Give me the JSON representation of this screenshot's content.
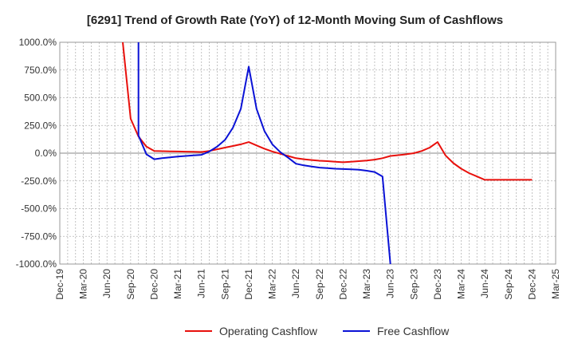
{
  "chart_data": {
    "type": "line",
    "title": "[6291]  Trend of Growth Rate (YoY) of 12-Month Moving Sum of Cashflows",
    "xlabel": "",
    "ylabel": "",
    "ylim": [
      -1000,
      1000
    ],
    "yticks": [
      1000,
      750,
      500,
      250,
      0,
      -250,
      -500,
      -750,
      -1000
    ],
    "ytick_labels": [
      "1000.0%",
      "750.0%",
      "500.0%",
      "250.0%",
      "0.0%",
      "-250.0%",
      "-500.0%",
      "-750.0%",
      "-1000.0%"
    ],
    "x_categories": [
      "Dec-19",
      "Mar-20",
      "Jun-20",
      "Sep-20",
      "Dec-20",
      "Mar-21",
      "Jun-21",
      "Sep-21",
      "Dec-21",
      "Mar-22",
      "Jun-22",
      "Sep-22",
      "Dec-22",
      "Mar-23",
      "Jun-23",
      "Sep-23",
      "Dec-23",
      "Mar-24",
      "Jun-24",
      "Sep-24",
      "Dec-24",
      "Mar-25"
    ],
    "grid": true,
    "legend_position": "bottom",
    "series": [
      {
        "name": "Operating Cashflow",
        "color": "#e8100c",
        "points": [
          [
            "Aug-20",
            1000
          ],
          [
            "Sep-20",
            310
          ],
          [
            "Oct-20",
            150
          ],
          [
            "Nov-20",
            60
          ],
          [
            "Dec-20",
            20
          ],
          [
            "Jan-21",
            18
          ],
          [
            "Feb-21",
            16
          ],
          [
            "Mar-21",
            15
          ],
          [
            "Apr-21",
            14
          ],
          [
            "May-21",
            12
          ],
          [
            "Jun-21",
            11
          ],
          [
            "Jul-21",
            20
          ],
          [
            "Aug-21",
            35
          ],
          [
            "Sep-21",
            50
          ],
          [
            "Oct-21",
            65
          ],
          [
            "Nov-21",
            80
          ],
          [
            "Dec-21",
            100
          ],
          [
            "Jan-22",
            70
          ],
          [
            "Feb-22",
            40
          ],
          [
            "Mar-22",
            15
          ],
          [
            "Apr-22",
            -5
          ],
          [
            "May-22",
            -25
          ],
          [
            "Jun-22",
            -45
          ],
          [
            "Jul-22",
            -55
          ],
          [
            "Aug-22",
            -62
          ],
          [
            "Sep-22",
            -68
          ],
          [
            "Oct-22",
            -72
          ],
          [
            "Nov-22",
            -78
          ],
          [
            "Dec-22",
            -82
          ],
          [
            "Jan-23",
            -78
          ],
          [
            "Feb-23",
            -72
          ],
          [
            "Mar-23",
            -66
          ],
          [
            "Apr-23",
            -58
          ],
          [
            "May-23",
            -45
          ],
          [
            "Jun-23",
            -25
          ],
          [
            "Jul-23",
            -18
          ],
          [
            "Aug-23",
            -10
          ],
          [
            "Sep-23",
            0
          ],
          [
            "Oct-23",
            20
          ],
          [
            "Nov-23",
            50
          ],
          [
            "Dec-23",
            100
          ],
          [
            "Jan-24",
            -20
          ],
          [
            "Feb-24",
            -90
          ],
          [
            "Mar-24",
            -140
          ],
          [
            "Apr-24",
            -180
          ],
          [
            "May-24",
            -210
          ],
          [
            "Jun-24",
            -240
          ],
          [
            "Jul-24",
            -240
          ],
          [
            "Aug-24",
            -240
          ],
          [
            "Sep-24",
            -240
          ],
          [
            "Oct-24",
            -240
          ],
          [
            "Nov-24",
            -240
          ],
          [
            "Dec-24",
            -240
          ]
        ]
      },
      {
        "name": "Free Cashflow",
        "color": "#0a12d6",
        "points": [
          [
            "Oct-20",
            1000
          ],
          [
            "Oct-20",
            160
          ],
          [
            "Nov-20",
            -10
          ],
          [
            "Dec-20",
            -55
          ],
          [
            "Jan-21",
            -45
          ],
          [
            "Feb-21",
            -38
          ],
          [
            "Mar-21",
            -30
          ],
          [
            "Apr-21",
            -25
          ],
          [
            "May-21",
            -20
          ],
          [
            "Jun-21",
            -15
          ],
          [
            "Jul-21",
            15
          ],
          [
            "Aug-21",
            60
          ],
          [
            "Sep-21",
            120
          ],
          [
            "Oct-21",
            230
          ],
          [
            "Nov-21",
            400
          ],
          [
            "Dec-21",
            780
          ],
          [
            "Jan-22",
            400
          ],
          [
            "Feb-22",
            200
          ],
          [
            "Mar-22",
            80
          ],
          [
            "Apr-22",
            10
          ],
          [
            "May-22",
            -40
          ],
          [
            "Jun-22",
            -95
          ],
          [
            "Jul-22",
            -110
          ],
          [
            "Aug-22",
            -120
          ],
          [
            "Sep-22",
            -130
          ],
          [
            "Oct-22",
            -135
          ],
          [
            "Nov-22",
            -140
          ],
          [
            "Dec-22",
            -143
          ],
          [
            "Jan-23",
            -145
          ],
          [
            "Feb-23",
            -150
          ],
          [
            "Mar-23",
            -158
          ],
          [
            "Apr-23",
            -170
          ],
          [
            "May-23",
            -210
          ],
          [
            "Jun-23",
            -1000
          ]
        ]
      }
    ]
  }
}
